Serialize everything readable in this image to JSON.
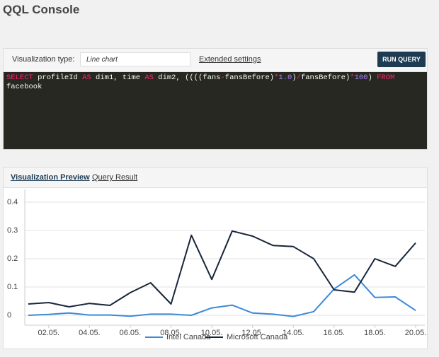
{
  "header": {
    "title": "QQL Console"
  },
  "toolbar": {
    "type_label": "Visualization type:",
    "type_value": "Line chart",
    "settings_link": "Extended settings",
    "run_button": "RUN QUERY"
  },
  "query": {
    "tokens": [
      {
        "text": "SELECT",
        "color": "#f92672"
      },
      {
        "text": " profileId ",
        "color": "#f8f8f2"
      },
      {
        "text": "AS",
        "color": "#f92672"
      },
      {
        "text": " dim1, time ",
        "color": "#f8f8f2"
      },
      {
        "text": "AS",
        "color": "#f92672"
      },
      {
        "text": " dim2, ((((fans",
        "color": "#f8f8f2"
      },
      {
        "text": "-",
        "color": "#f92672"
      },
      {
        "text": "fansBefore)",
        "color": "#f8f8f2"
      },
      {
        "text": "*",
        "color": "#f92672"
      },
      {
        "text": "1.0",
        "color": "#ae81ff"
      },
      {
        "text": ")",
        "color": "#f8f8f2"
      },
      {
        "text": "/",
        "color": "#f92672"
      },
      {
        "text": "fansBefore)",
        "color": "#f8f8f2"
      },
      {
        "text": "*",
        "color": "#f92672"
      },
      {
        "text": "100",
        "color": "#ae81ff"
      },
      {
        "text": ") ",
        "color": "#f8f8f2"
      },
      {
        "text": "FROM",
        "color": "#f92672"
      },
      {
        "text": " facebook",
        "color": "#f8f8f2"
      }
    ]
  },
  "tabs": [
    "Visualization Preview",
    "Query Result"
  ],
  "chart_data": {
    "type": "line",
    "categories": [
      null,
      "02.05.",
      null,
      "04.05.",
      null,
      "06.05.",
      null,
      "08.05.",
      null,
      "10.05.",
      null,
      "12.05.",
      null,
      "14.05.",
      null,
      "16.05.",
      null,
      "18.05.",
      null,
      "20.05."
    ],
    "series": [
      {
        "name": "Intel Canada",
        "color": "#3b8ad9",
        "values": [
          0,
          0.003,
          0.008,
          0.001,
          0.001,
          -0.003,
          0.004,
          0.004,
          0,
          0.026,
          0.036,
          0.008,
          0.004,
          -0.004,
          0.013,
          0.093,
          0.143,
          0.063,
          0.065,
          0.017
        ]
      },
      {
        "name": "Microsoft Canada",
        "color": "#17263a",
        "values": [
          0.04,
          0.045,
          0.03,
          0.042,
          0.035,
          0.08,
          0.115,
          0.04,
          0.283,
          0.127,
          0.298,
          0.28,
          0.247,
          0.243,
          0.2,
          0.09,
          0.082,
          0.2,
          0.173,
          0.256
        ]
      }
    ],
    "ylim": [
      -0.035,
      0.445
    ],
    "yticks": [
      0,
      0.1,
      0.2,
      0.3,
      0.4
    ],
    "grid": true
  }
}
